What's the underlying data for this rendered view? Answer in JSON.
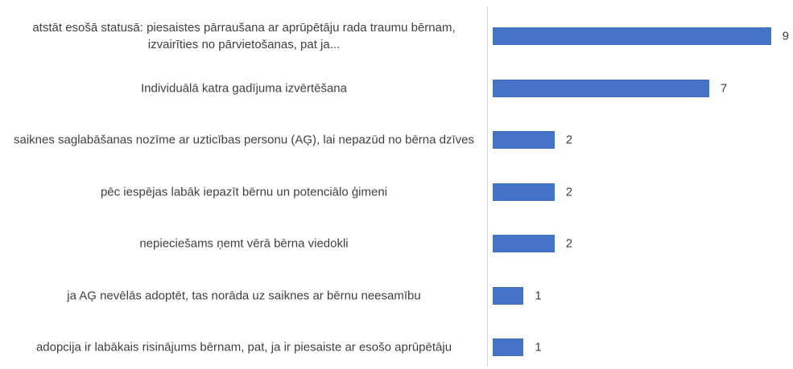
{
  "chart_data": {
    "type": "bar",
    "orientation": "horizontal",
    "categories": [
      "atstāt esošā statusā: piesaistes pārraušana ar aprūpētāju rada traumu bērnam, izvairīties no pārvietošanas, pat ja...",
      "Individuālā katra gadījuma izvērtēšana",
      "saiknes saglabāšanas nozīme ar uzticības personu (AĢ), lai nepazūd no bērna dzīves",
      "pēc iespējas labāk iepazīt bērnu un potenciālo ģimeni",
      "nepieciešams ņemt vērā bērna viedokli",
      "ja AĢ nevēlās adoptēt, tas norāda uz saiknes ar bērnu neesamību",
      "adopcija ir labākais risinājums bērnam, pat, ja ir piesaiste ar esošo aprūpētāju"
    ],
    "values": [
      9,
      7,
      2,
      2,
      2,
      1,
      1
    ],
    "color": "#4472c4"
  }
}
